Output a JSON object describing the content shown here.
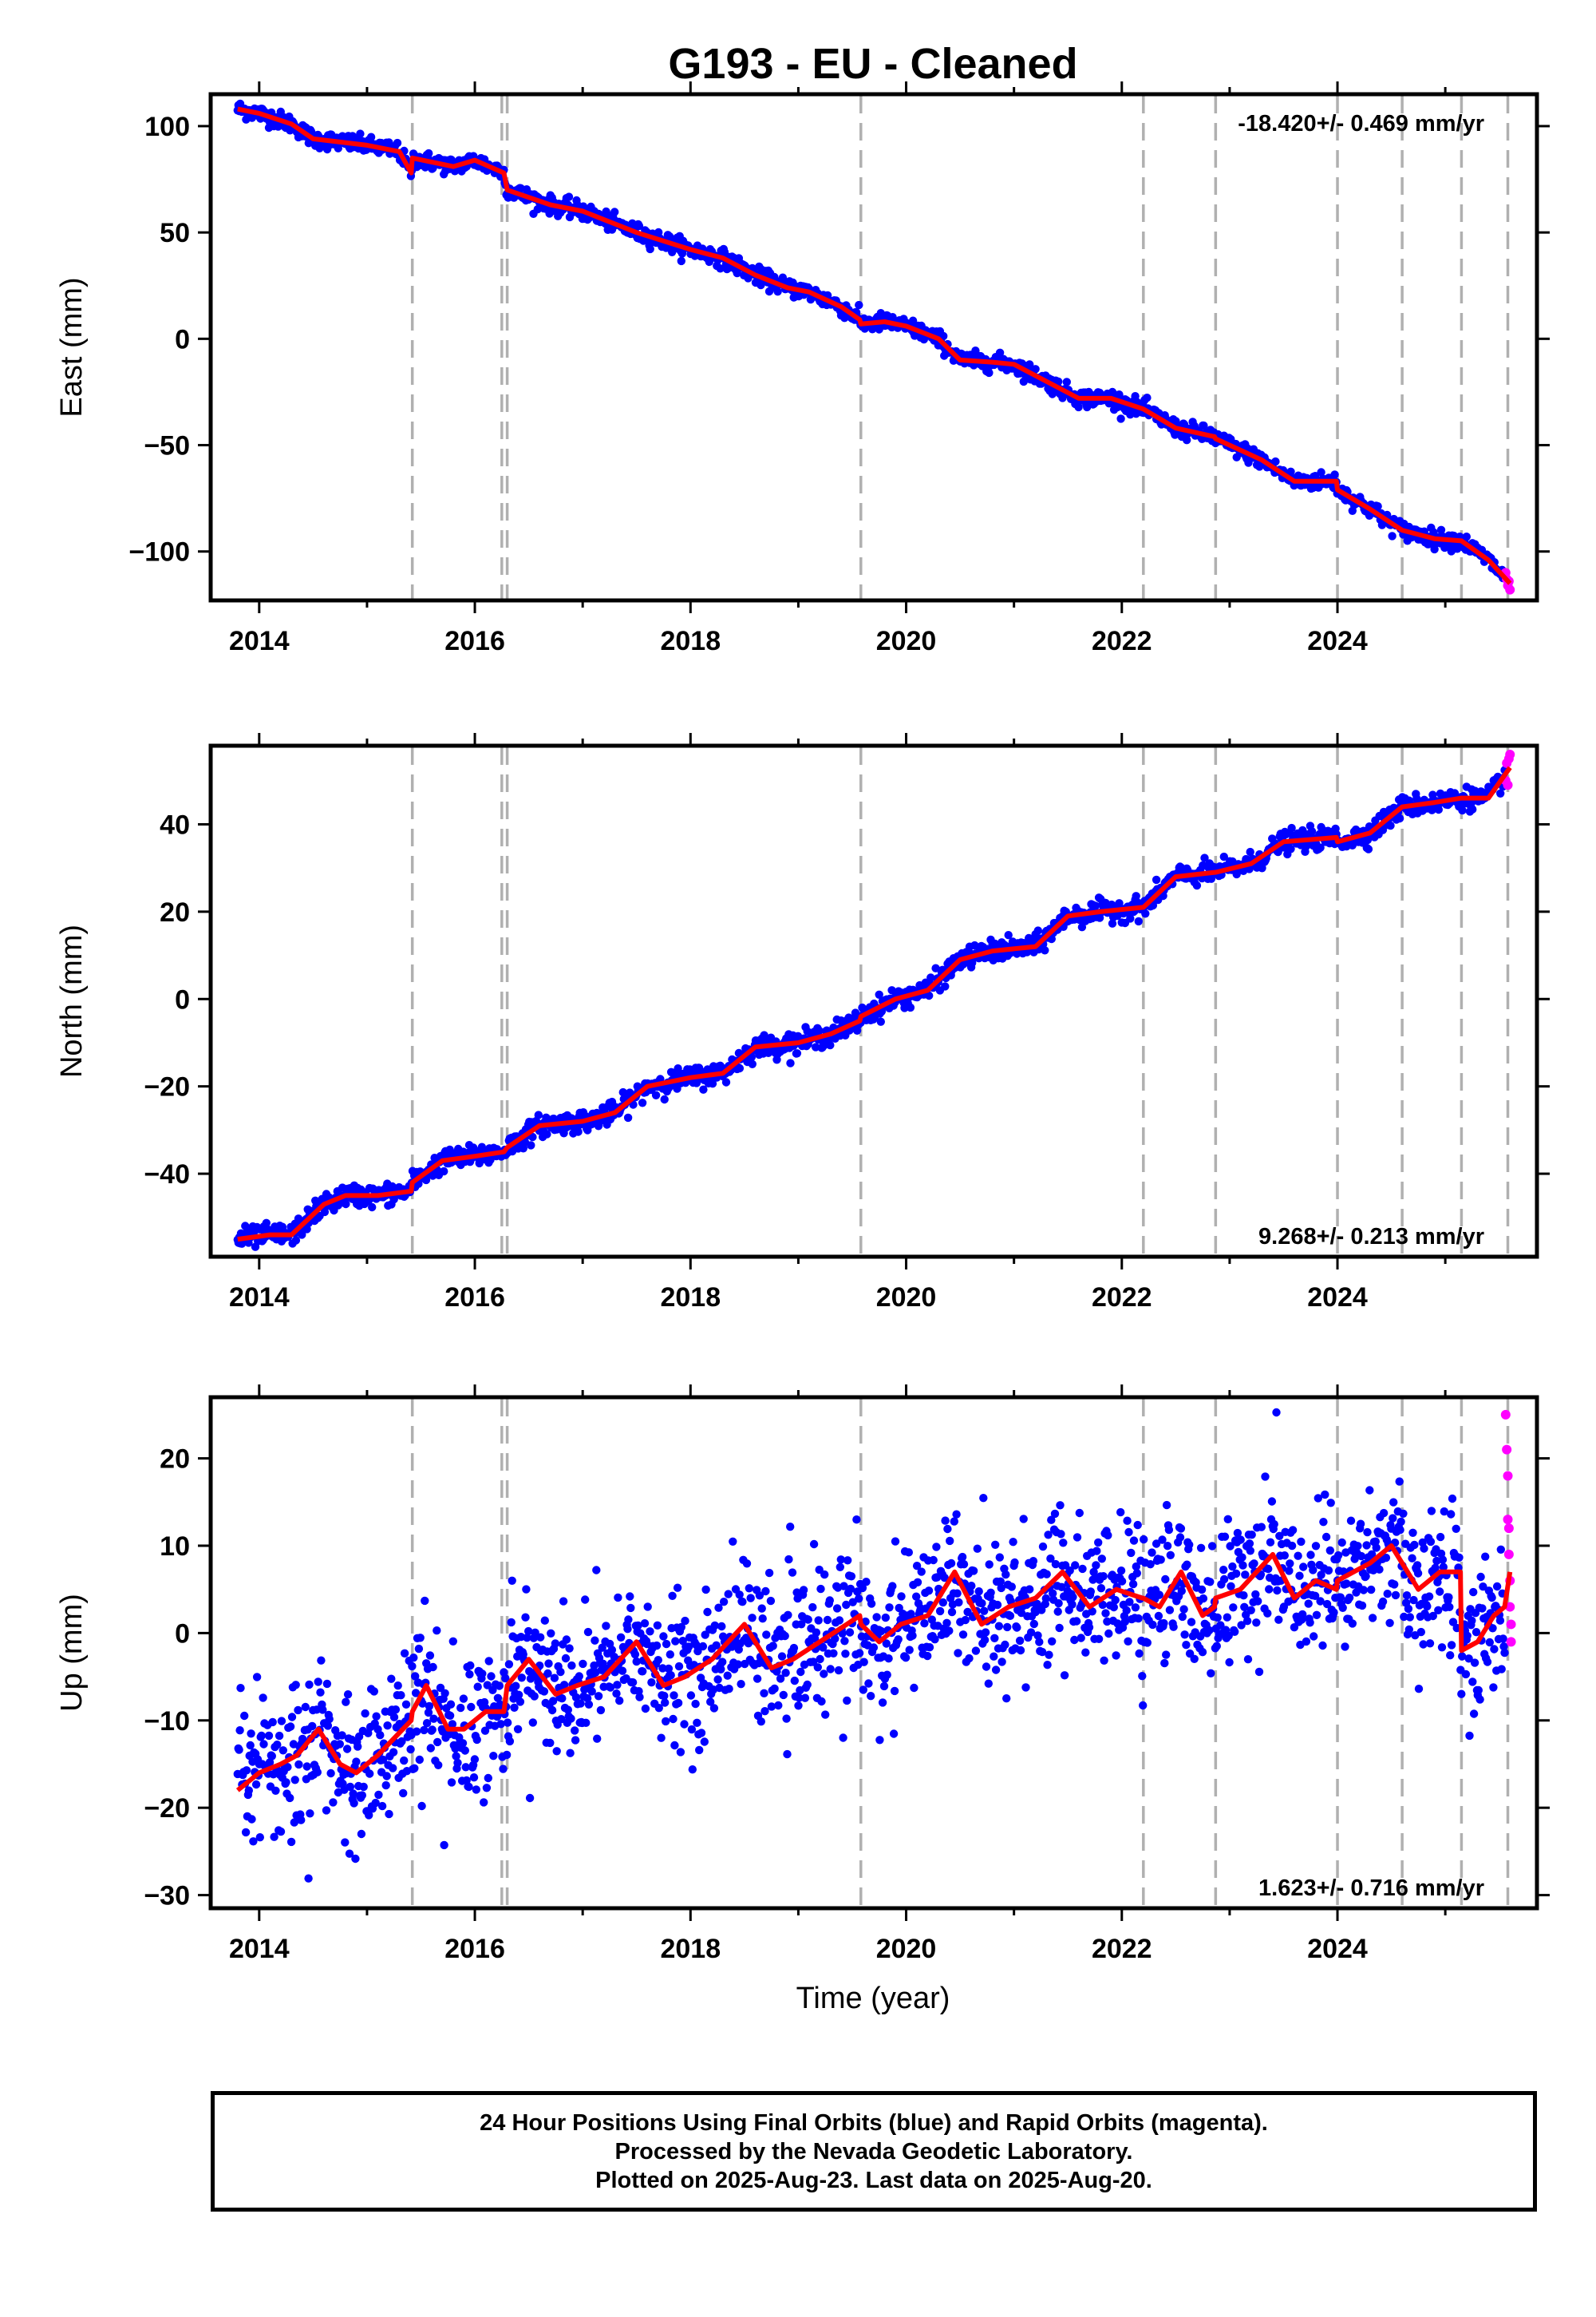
{
  "title": "G193  - EU - Cleaned",
  "xlabel": "Time (year)",
  "footer": {
    "line1": "24 Hour Positions Using Final Orbits (blue) and Rapid Orbits (magenta).",
    "line2": "Processed by the Nevada Geodetic Laboratory.",
    "line3": "Plotted on 2025-Aug-23. Last data on 2025-Aug-20."
  },
  "colors": {
    "final_orbits": "#0000ff",
    "rapid_orbits": "#ff00ff",
    "model": "#ff0000",
    "event_lines": "#b0b0b0"
  },
  "chart_data": [
    {
      "type": "scatter",
      "panel": "east",
      "ylabel": "East (mm)",
      "xlim": [
        2013.55,
        2025.85
      ],
      "ylim": [
        -123,
        115
      ],
      "x_ticks": [
        2014,
        2016,
        2018,
        2020,
        2022,
        2024
      ],
      "y_ticks": [
        -100,
        -50,
        0,
        50,
        100
      ],
      "rate_text": "-18.420+/- 0.469 mm/yr",
      "rate_position": "top-right",
      "event_lines_x": [
        2015.42,
        2016.25,
        2016.3,
        2019.58,
        2022.2,
        2022.87,
        2024.0,
        2024.6,
        2025.15,
        2025.58
      ],
      "model_line": {
        "x": [
          2013.8,
          2014.0,
          2014.3,
          2014.5,
          2015.0,
          2015.3,
          2015.41,
          2015.42,
          2015.8,
          2016.0,
          2016.27,
          2016.3,
          2016.7,
          2017.0,
          2017.5,
          2018.0,
          2018.3,
          2018.6,
          2018.9,
          2019.1,
          2019.4,
          2019.57,
          2019.58,
          2019.8,
          2020.0,
          2020.3,
          2020.5,
          2020.51,
          2020.8,
          2021.0,
          2021.3,
          2021.6,
          2021.9,
          2022.2,
          2022.5,
          2022.86,
          2022.87,
          2023.3,
          2023.6,
          2023.99,
          2024.0,
          2024.3,
          2024.6,
          2024.9,
          2025.15,
          2025.4,
          2025.6
        ],
        "y": [
          108,
          106,
          101,
          94,
          91,
          88,
          78,
          85,
          81,
          84,
          78,
          70,
          63,
          60,
          50,
          42,
          38,
          30,
          24,
          22,
          15,
          9,
          7,
          8,
          6,
          0,
          -10,
          -10,
          -11,
          -12,
          -20,
          -28,
          -28,
          -33,
          -42,
          -46,
          -47,
          -57,
          -67,
          -67,
          -71,
          -80,
          -90,
          -94,
          -95,
          -104,
          -115
        ]
      },
      "final_orbit_points": {
        "x_start": 2013.8,
        "x_end": 2025.55,
        "scatter_mm": 2.0,
        "count": 1500
      },
      "rapid_orbit_points": {
        "x": [
          2025.56,
          2025.57,
          2025.58,
          2025.59,
          2025.6
        ],
        "y": [
          -110,
          -113,
          -116,
          -114,
          -118
        ]
      }
    },
    {
      "type": "scatter",
      "panel": "north",
      "ylabel": "North (mm)",
      "xlim": [
        2013.55,
        2025.85
      ],
      "ylim": [
        -59,
        58
      ],
      "x_ticks": [
        2014,
        2016,
        2018,
        2020,
        2022,
        2024
      ],
      "y_ticks": [
        -40,
        -20,
        0,
        20,
        40
      ],
      "rate_text": "9.268+/- 0.213 mm/yr",
      "rate_position": "bottom-right",
      "event_lines_x": [
        2015.42,
        2016.25,
        2016.3,
        2019.58,
        2022.2,
        2022.87,
        2024.0,
        2024.6,
        2025.15,
        2025.58
      ],
      "model_line": {
        "x": [
          2013.8,
          2014.1,
          2014.3,
          2014.6,
          2014.8,
          2015.1,
          2015.41,
          2015.42,
          2015.7,
          2016.0,
          2016.27,
          2016.3,
          2016.6,
          2017.0,
          2017.3,
          2017.6,
          2018.0,
          2018.3,
          2018.6,
          2019.0,
          2019.3,
          2019.57,
          2019.58,
          2019.9,
          2020.2,
          2020.5,
          2020.8,
          2021.2,
          2021.5,
          2021.8,
          2022.2,
          2022.5,
          2022.86,
          2022.87,
          2023.2,
          2023.5,
          2023.99,
          2024.0,
          2024.3,
          2024.6,
          2024.9,
          2025.15,
          2025.4,
          2025.6
        ],
        "y": [
          -55,
          -54,
          -54,
          -47,
          -45,
          -45,
          -44,
          -42,
          -37,
          -36,
          -35,
          -34,
          -29,
          -28,
          -26,
          -20,
          -18,
          -17,
          -11,
          -10,
          -8,
          -5,
          -4,
          0,
          2,
          9,
          11,
          12,
          19,
          20,
          21,
          28,
          29,
          29,
          31,
          36,
          37,
          36,
          38,
          44,
          45,
          46,
          46,
          53
        ]
      },
      "final_orbit_points": {
        "x_start": 2013.8,
        "x_end": 2025.55,
        "scatter_mm": 1.2,
        "count": 1500
      },
      "rapid_orbit_points": {
        "x": [
          2025.56,
          2025.57,
          2025.58,
          2025.59,
          2025.6
        ],
        "y": [
          50,
          54,
          49,
          55,
          56
        ]
      }
    },
    {
      "type": "scatter",
      "panel": "up",
      "ylabel": "Up (mm)",
      "xlim": [
        2013.55,
        2025.85
      ],
      "ylim": [
        -31.5,
        27
      ],
      "x_ticks": [
        2014,
        2016,
        2018,
        2020,
        2022,
        2024
      ],
      "y_ticks": [
        -30,
        -20,
        -10,
        0,
        10,
        20
      ],
      "rate_text": "1.623+/- 0.716 mm/yr",
      "rate_position": "bottom-right",
      "event_lines_x": [
        2015.42,
        2016.25,
        2016.3,
        2019.58,
        2022.2,
        2022.87,
        2024.0,
        2024.6,
        2025.15,
        2025.58
      ],
      "model_line": {
        "x": [
          2013.8,
          2014.0,
          2014.2,
          2014.35,
          2014.55,
          2014.75,
          2014.9,
          2015.1,
          2015.41,
          2015.42,
          2015.55,
          2015.75,
          2015.9,
          2016.1,
          2016.27,
          2016.3,
          2016.5,
          2016.75,
          2016.95,
          2017.2,
          2017.5,
          2017.75,
          2017.95,
          2018.2,
          2018.5,
          2018.75,
          2018.95,
          2019.2,
          2019.45,
          2019.57,
          2019.58,
          2019.75,
          2019.95,
          2020.2,
          2020.45,
          2020.7,
          2020.95,
          2021.2,
          2021.45,
          2021.7,
          2021.95,
          2022.19,
          2022.2,
          2022.35,
          2022.55,
          2022.75,
          2022.86,
          2022.87,
          2023.1,
          2023.4,
          2023.6,
          2023.8,
          2023.99,
          2024.0,
          2024.3,
          2024.5,
          2024.75,
          2024.95,
          2025.14,
          2025.15,
          2025.3,
          2025.45,
          2025.55,
          2025.6
        ],
        "y": [
          -18,
          -16,
          -15,
          -14,
          -11,
          -15,
          -16,
          -14,
          -10,
          -9,
          -6,
          -11,
          -11,
          -9,
          -9,
          -6,
          -3,
          -7,
          -6,
          -5,
          -1,
          -6,
          -5,
          -3,
          1,
          -4,
          -3,
          -1,
          1,
          2,
          1,
          -1,
          1,
          2,
          7,
          1,
          3,
          4,
          7,
          3,
          5,
          4,
          4,
          3,
          7,
          2,
          3,
          4,
          5,
          9,
          4,
          6,
          5,
          6,
          8,
          10,
          5,
          7,
          7,
          -2,
          -1,
          2,
          3,
          7
        ]
      },
      "final_orbit_points": {
        "x_start": 2013.8,
        "x_end": 2025.55,
        "scatter_mm": 4.0,
        "count": 1700
      },
      "rapid_orbit_points": {
        "x": [
          2025.56,
          2025.57,
          2025.58,
          2025.58,
          2025.59,
          2025.59,
          2025.6,
          2025.6,
          2025.61,
          2025.61
        ],
        "y": [
          25,
          21,
          18,
          13,
          12,
          9,
          6,
          3,
          1,
          -1
        ]
      }
    }
  ]
}
